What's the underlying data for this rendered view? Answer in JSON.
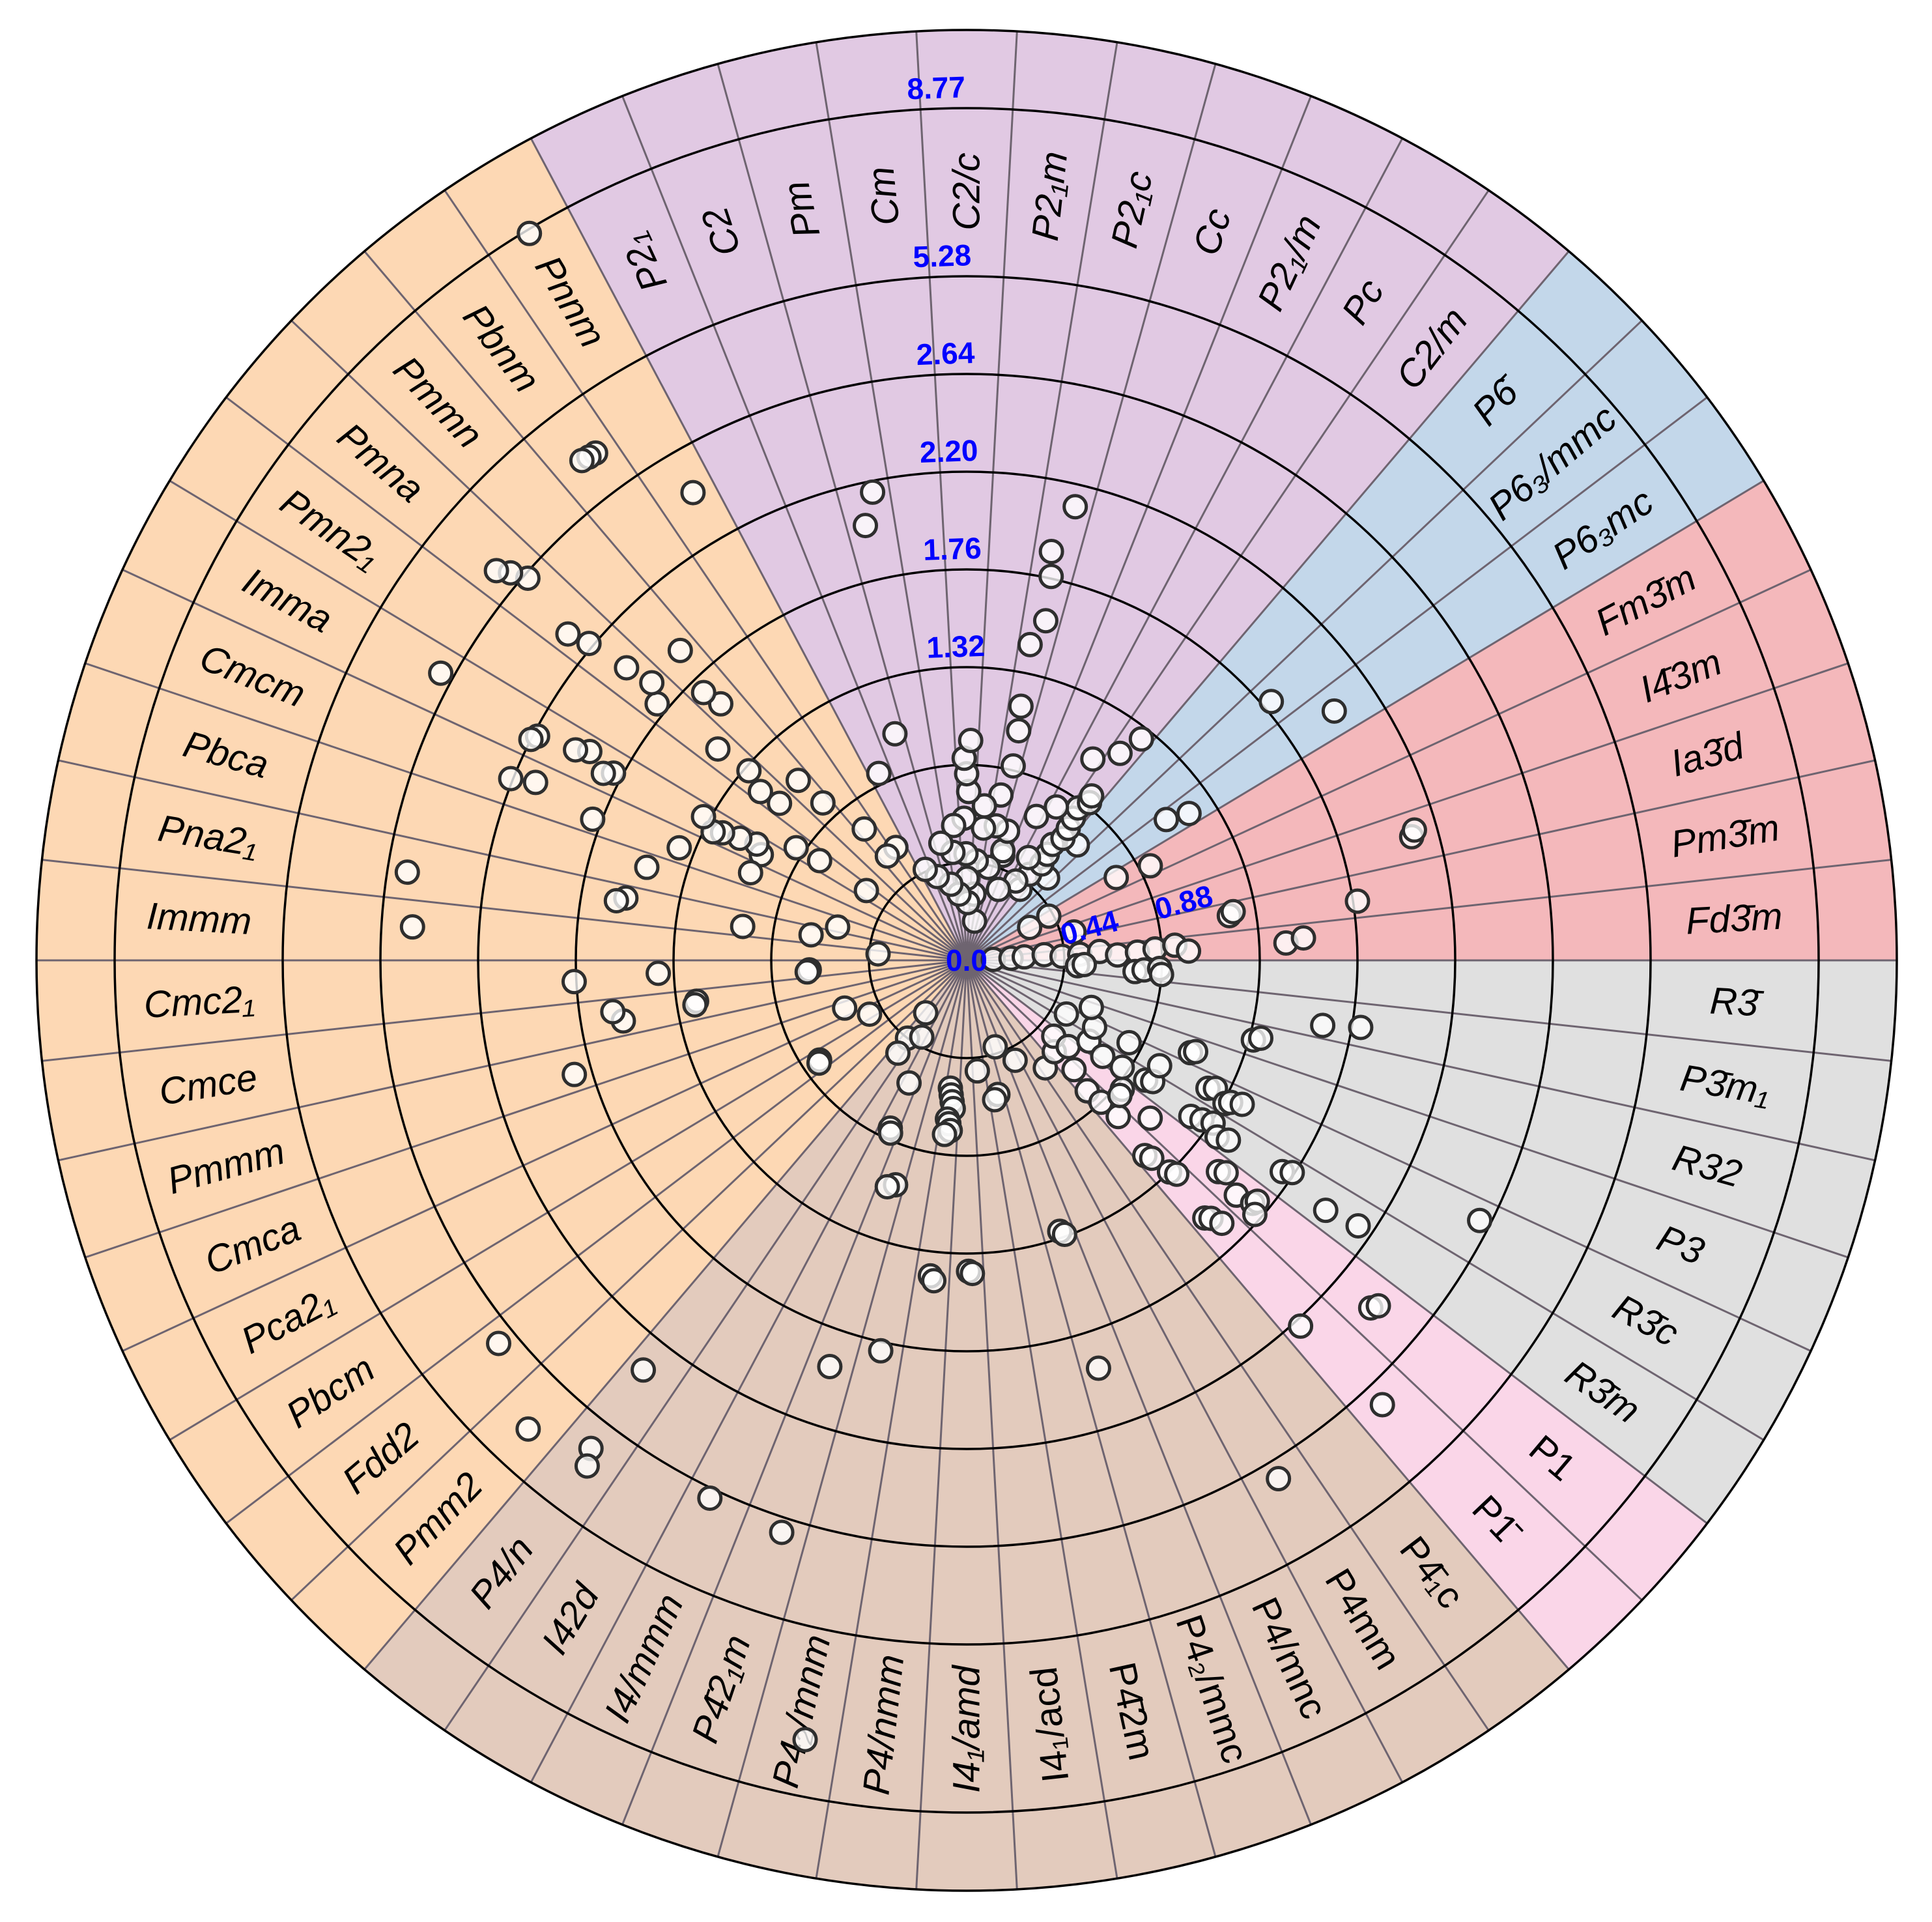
{
  "chart_data": {
    "type": "scatter",
    "coordinate_system": "polar",
    "radial_ticks": [
      0.0,
      0.44,
      0.88,
      1.32,
      1.76,
      2.2,
      2.64,
      5.28,
      8.77
    ],
    "radial_tick_labels": [
      "0.0",
      "0.44",
      "0.88",
      "1.32",
      "1.76",
      "2.20",
      "2.64",
      "5.28",
      "8.77"
    ],
    "radial_range": [
      0,
      8.77
    ],
    "grid": true,
    "marker": {
      "fill": "#ffffff",
      "edge": "#2e2e2e"
    },
    "tick_label_color": "#0000ff",
    "sector_line_color": "#6e6470",
    "color_groups": [
      {
        "color": "#f4b8bb",
        "groups": [
          {
            "name": "Fd3̄m",
            "values": [
              0.12,
              0.2,
              0.26,
              0.35,
              0.43,
              0.51,
              0.6,
              0.68,
              0.77,
              0.85,
              0.94,
              1.0,
              1.44,
              1.52
            ]
          },
          {
            "name": "Pm3̄m",
            "values": [
              1.2,
              1.22,
              1.78
            ]
          },
          {
            "name": "Ia3̄d",
            "values": [
              0.5,
              2.08,
              2.1
            ]
          },
          {
            "name": "I4̄3m",
            "values": []
          },
          {
            "name": "Fm3̄m",
            "values": [
              0.32,
              0.42,
              0.77,
              0.93
            ]
          }
        ]
      },
      {
        "color": "#c3d7ea",
        "groups": [
          {
            "name": "P6₃mc",
            "values": [
              1.1,
              1.2,
              2.0
            ]
          },
          {
            "name": "P6₃/mmc",
            "values": [
              1.8
            ]
          },
          {
            "name": "P6̄",
            "values": [
              0.52,
              0.72
            ]
          }
        ]
      },
      {
        "color": "#e1c9e3",
        "groups": [
          {
            "name": "C2/m",
            "values": [
              0.4,
              0.48,
              0.55,
              0.6,
              0.65,
              0.7,
              0.75,
              0.8,
              0.85,
              0.9,
              0.93,
              1.16,
              1.27
            ]
          },
          {
            "name": "Pc",
            "values": [
              0.42,
              0.54,
              0.8,
              1.07
            ]
          },
          {
            "name": "P2₁/m",
            "values": [
              0.35,
              0.72
            ]
          },
          {
            "name": "Cc",
            "values": [
              0.5,
              0.52,
              0.61
            ]
          },
          {
            "name": "P2₁c",
            "values": [
              0.18,
              0.43,
              0.62,
              0.76,
              0.9,
              1.06,
              1.17,
              1.45,
              1.57,
              1.77,
              1.88,
              2.1
            ]
          },
          {
            "name": "P2₁m",
            "values": [
              0.3,
              0.45,
              0.6,
              0.7
            ]
          },
          {
            "name": "C2/c",
            "values": [
              0.26,
              0.37,
              0.48,
              0.64,
              0.76,
              0.84,
              0.91,
              0.99
            ]
          },
          {
            "name": "Cm",
            "values": [
              0.3,
              0.49,
              0.61
            ]
          },
          {
            "name": "Pm",
            "values": [
              0.35,
              0.54,
              2.01,
              2.15
            ]
          },
          {
            "name": "C2",
            "values": [
              0.4,
              1.07
            ]
          },
          {
            "name": "P2₁",
            "values": [
              0.45,
              0.93
            ]
          }
        ]
      },
      {
        "color": "#fdd8b4",
        "groups": [
          {
            "name": "Pnnm",
            "values": [
              0.6,
              2.44,
              8.69
            ]
          },
          {
            "name": "Pbnm",
            "values": [
              0.59,
              0.75,
              3.78,
              3.8,
              3.84
            ]
          },
          {
            "name": "Pmmn",
            "values": [
              0.96,
              1.11,
              1.6,
              1.69,
              1.9
            ]
          },
          {
            "name": "Pmna",
            "values": [
              1.1,
              1.2,
              1.3,
              1.47,
              1.81,
              1.89,
              2.02,
              2.22,
              2.32,
              2.62,
              2.97,
              3.3
            ]
          },
          {
            "name": "Pmn2₁",
            "values": [
              0.55,
              0.8,
              0.92
            ]
          },
          {
            "name": "Imma",
            "values": [
              1.04,
              1.08,
              1.16,
              1.24,
              1.28,
              1.35,
              1.8,
              1.84,
              1.94,
              2.0,
              2.18,
              2.2,
              2.99
            ]
          },
          {
            "name": "Cmcm",
            "values": [
              1.05,
              1.39,
              1.8,
              2.1,
              2.21
            ]
          },
          {
            "name": "Pbca",
            "values": [
              0.6,
              1.5
            ]
          },
          {
            "name": "Pna2₁",
            "values": [
              0.71,
              1.02,
              1.56,
              1.6,
              2.55
            ]
          },
          {
            "name": "Immm",
            "values": [
              0.4,
              2.5
            ]
          },
          {
            "name": "Cmc2₁",
            "values": [
              0.71,
              0.72,
              1.39,
              1.77
            ]
          },
          {
            "name": "Cmce",
            "values": [
              1.23,
              1.24,
              1.57,
              1.61
            ]
          },
          {
            "name": "Pmmm",
            "values": [
              1.84
            ]
          },
          {
            "name": "Cmca",
            "values": [
              0.59
            ]
          },
          {
            "name": "Pca2₁",
            "values": [
              0.5
            ]
          },
          {
            "name": "Pbcm",
            "values": [
              0.8,
              0.81
            ]
          },
          {
            "name": "Fdd2",
            "values": [
              3.14
            ]
          },
          {
            "name": "Pmm2",
            "values": [
              4.14
            ]
          }
        ]
      },
      {
        "color": "#e3cbbd",
        "groups": [
          {
            "name": "P4/n",
            "values": [
              0.3,
              0.44,
              0.52,
              2.35,
              3.44,
              3.88
            ]
          },
          {
            "name": "I42d",
            "values": [
              0.4
            ]
          },
          {
            "name": "I4/mmm",
            "values": [
              0.61,
              0.83,
              0.85,
              2.9
            ]
          },
          {
            "name": "P4̄2₁m",
            "values": [
              1.06,
              1.08,
              1.93,
              3.04
            ]
          },
          {
            "name": "P4₂/mnm",
            "values": [
              1.8,
              7.6
            ]
          },
          {
            "name": "P4/nmm",
            "values": [
              0.58,
              0.61,
              0.64,
              0.67,
              0.72,
              0.74,
              0.77,
              0.79,
              1.43,
              1.45
            ]
          },
          {
            "name": "I4₁/amd",
            "values": [
              1.4,
              1.41
            ]
          },
          {
            "name": "I4₁/acd",
            "values": [
              0.5
            ]
          },
          {
            "name": "P4̄2m",
            "values": [
              0.62,
              0.64
            ]
          },
          {
            "name": "P4₂/mmc",
            "values": [
              0.41,
              1.29,
              1.31,
              1.93
            ]
          },
          {
            "name": "P4/mnc",
            "values": [
              0.5
            ]
          },
          {
            "name": "P4mm",
            "values": [
              3.14
            ]
          },
          {
            "name": "P4̄₁c",
            "values": [
              0.6
            ]
          }
        ]
      },
      {
        "color": "#fad6e8",
        "groups": [
          {
            "name": "P1̄",
            "values": [
              0.57,
              0.69,
              0.8,
              0.88,
              0.98,
              1.19,
              1.22,
              1.32,
              1.35,
              1.58,
              1.6,
              1.65,
              2.23,
              3.24
            ]
          },
          {
            "name": "P1",
            "values": [
              0.52,
              0.6,
              0.91,
              0.92,
              1.09,
              1.48,
              1.51,
              1.61,
              1.69,
              1.7,
              1.73,
              2.4,
              2.42
            ]
          }
        ]
      },
      {
        "color": "#e0e0e0",
        "groups": [
          {
            "name": "R3̄m",
            "values": [
              0.66,
              0.75,
              0.85,
              0.97,
              1.0,
              1.23,
              1.28,
              1.33,
              1.38,
              1.43,
              1.71,
              1.75,
              1.97,
              2.13
            ]
          },
          {
            "name": "R3̄c",
            "values": [
              0.51,
              0.65,
              0.82,
              0.99,
              1.23,
              1.26,
              1.33,
              1.35,
              1.4,
              2.59
            ]
          },
          {
            "name": "P3",
            "values": [
              0.6,
              1.09,
              1.11
            ]
          },
          {
            "name": "R32",
            "values": [
              1.34,
              1.37
            ]
          },
          {
            "name": "P3̄m₁",
            "values": [
              1.63,
              1.8
            ]
          },
          {
            "name": "R3̄",
            "values": [
              0.5,
              0.53,
              0.76,
              0.8,
              0.87,
              0.88
            ]
          }
        ]
      }
    ]
  }
}
